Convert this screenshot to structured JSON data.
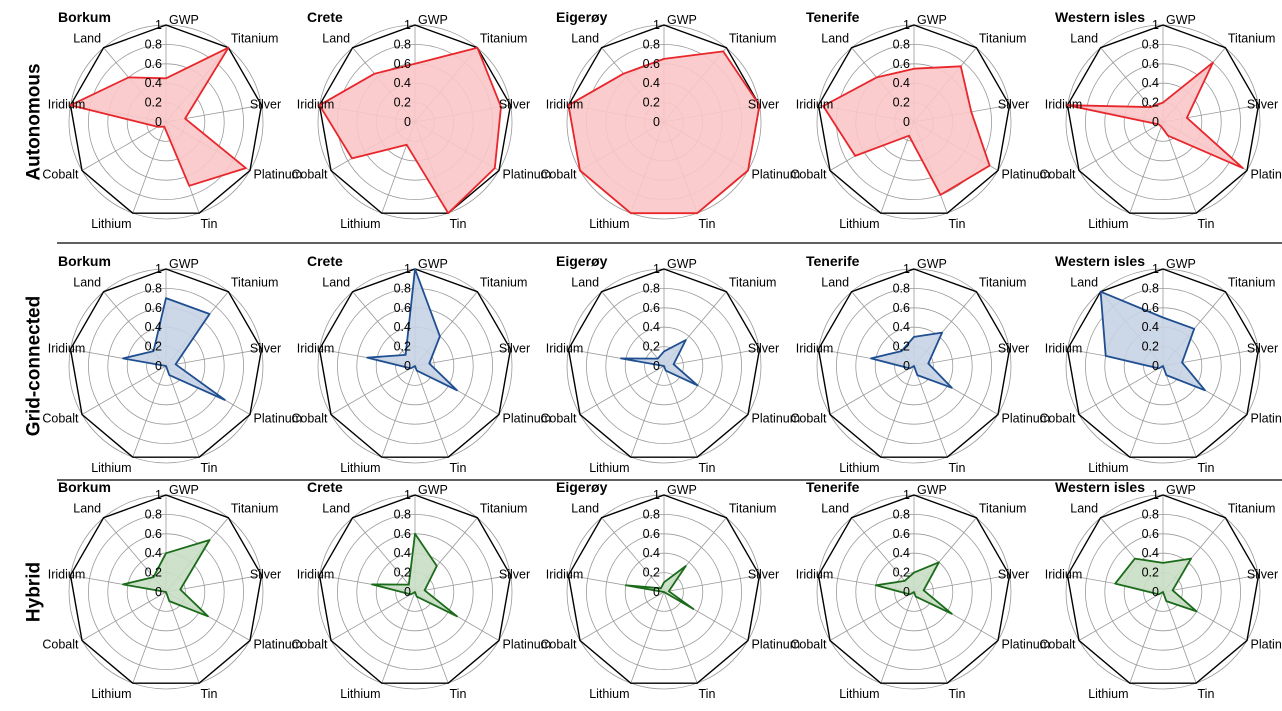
{
  "chart_data": {
    "type": "radar",
    "axes": [
      "GWP",
      "Titanium",
      "Silver",
      "Platinum",
      "Tin",
      "Lithium",
      "Cobalt",
      "Iridium",
      "Land"
    ],
    "ticks": [
      "0",
      "0.2",
      "0.4",
      "0.6",
      "0.8",
      "1"
    ],
    "rlim": [
      0,
      1
    ],
    "sites": [
      "Borkum",
      "Crete",
      "Eigerøy",
      "Tenerife",
      "Western isles"
    ],
    "rows": [
      {
        "label": "Autonomous",
        "color": "#e8262b",
        "fill": "#f9c7c8",
        "values": [
          [
            0.45,
            1.0,
            0.2,
            0.95,
            0.7,
            0.05,
            0.1,
            1.0,
            0.6
          ],
          [
            0.6,
            1.0,
            0.9,
            0.95,
            1.0,
            0.25,
            0.75,
            1.0,
            0.65
          ],
          [
            0.65,
            0.95,
            1.0,
            1.0,
            1.0,
            1.0,
            1.0,
            1.0,
            0.65
          ],
          [
            0.55,
            0.75,
            0.6,
            0.9,
            0.8,
            0.15,
            0.7,
            0.95,
            0.6
          ],
          [
            0.2,
            0.8,
            0.25,
            0.95,
            0.15,
            0.05,
            0.05,
            1.0,
            0.2
          ]
        ]
      },
      {
        "label": "Grid-connected",
        "color": "#1f4e91",
        "fill": "#c6d3e4",
        "values": [
          [
            0.7,
            0.7,
            0.1,
            0.7,
            0.1,
            0.0,
            0.0,
            0.45,
            0.2
          ],
          [
            1.0,
            0.4,
            0.15,
            0.5,
            0.05,
            0.0,
            0.05,
            0.5,
            0.15
          ],
          [
            0.15,
            0.35,
            0.1,
            0.4,
            0.05,
            0.0,
            0.0,
            0.45,
            0.1
          ],
          [
            0.3,
            0.45,
            0.15,
            0.45,
            0.1,
            0.0,
            0.05,
            0.45,
            0.2
          ],
          [
            0.5,
            0.5,
            0.2,
            0.5,
            0.1,
            0.0,
            0.05,
            0.6,
            1.0
          ]
        ]
      },
      {
        "label": "Hybrid",
        "color": "#1a6b1a",
        "fill": "#c9dec4",
        "values": [
          [
            0.4,
            0.7,
            0.15,
            0.5,
            0.1,
            0.0,
            0.0,
            0.45,
            0.2
          ],
          [
            0.6,
            0.35,
            0.1,
            0.5,
            0.05,
            0.0,
            0.05,
            0.45,
            0.1
          ],
          [
            0.1,
            0.35,
            0.05,
            0.35,
            0.0,
            0.0,
            0.0,
            0.4,
            0.05
          ],
          [
            0.2,
            0.4,
            0.1,
            0.45,
            0.05,
            0.0,
            0.05,
            0.4,
            0.15
          ],
          [
            0.3,
            0.45,
            0.1,
            0.4,
            0.1,
            0.0,
            0.05,
            0.5,
            0.45
          ]
        ]
      }
    ]
  }
}
